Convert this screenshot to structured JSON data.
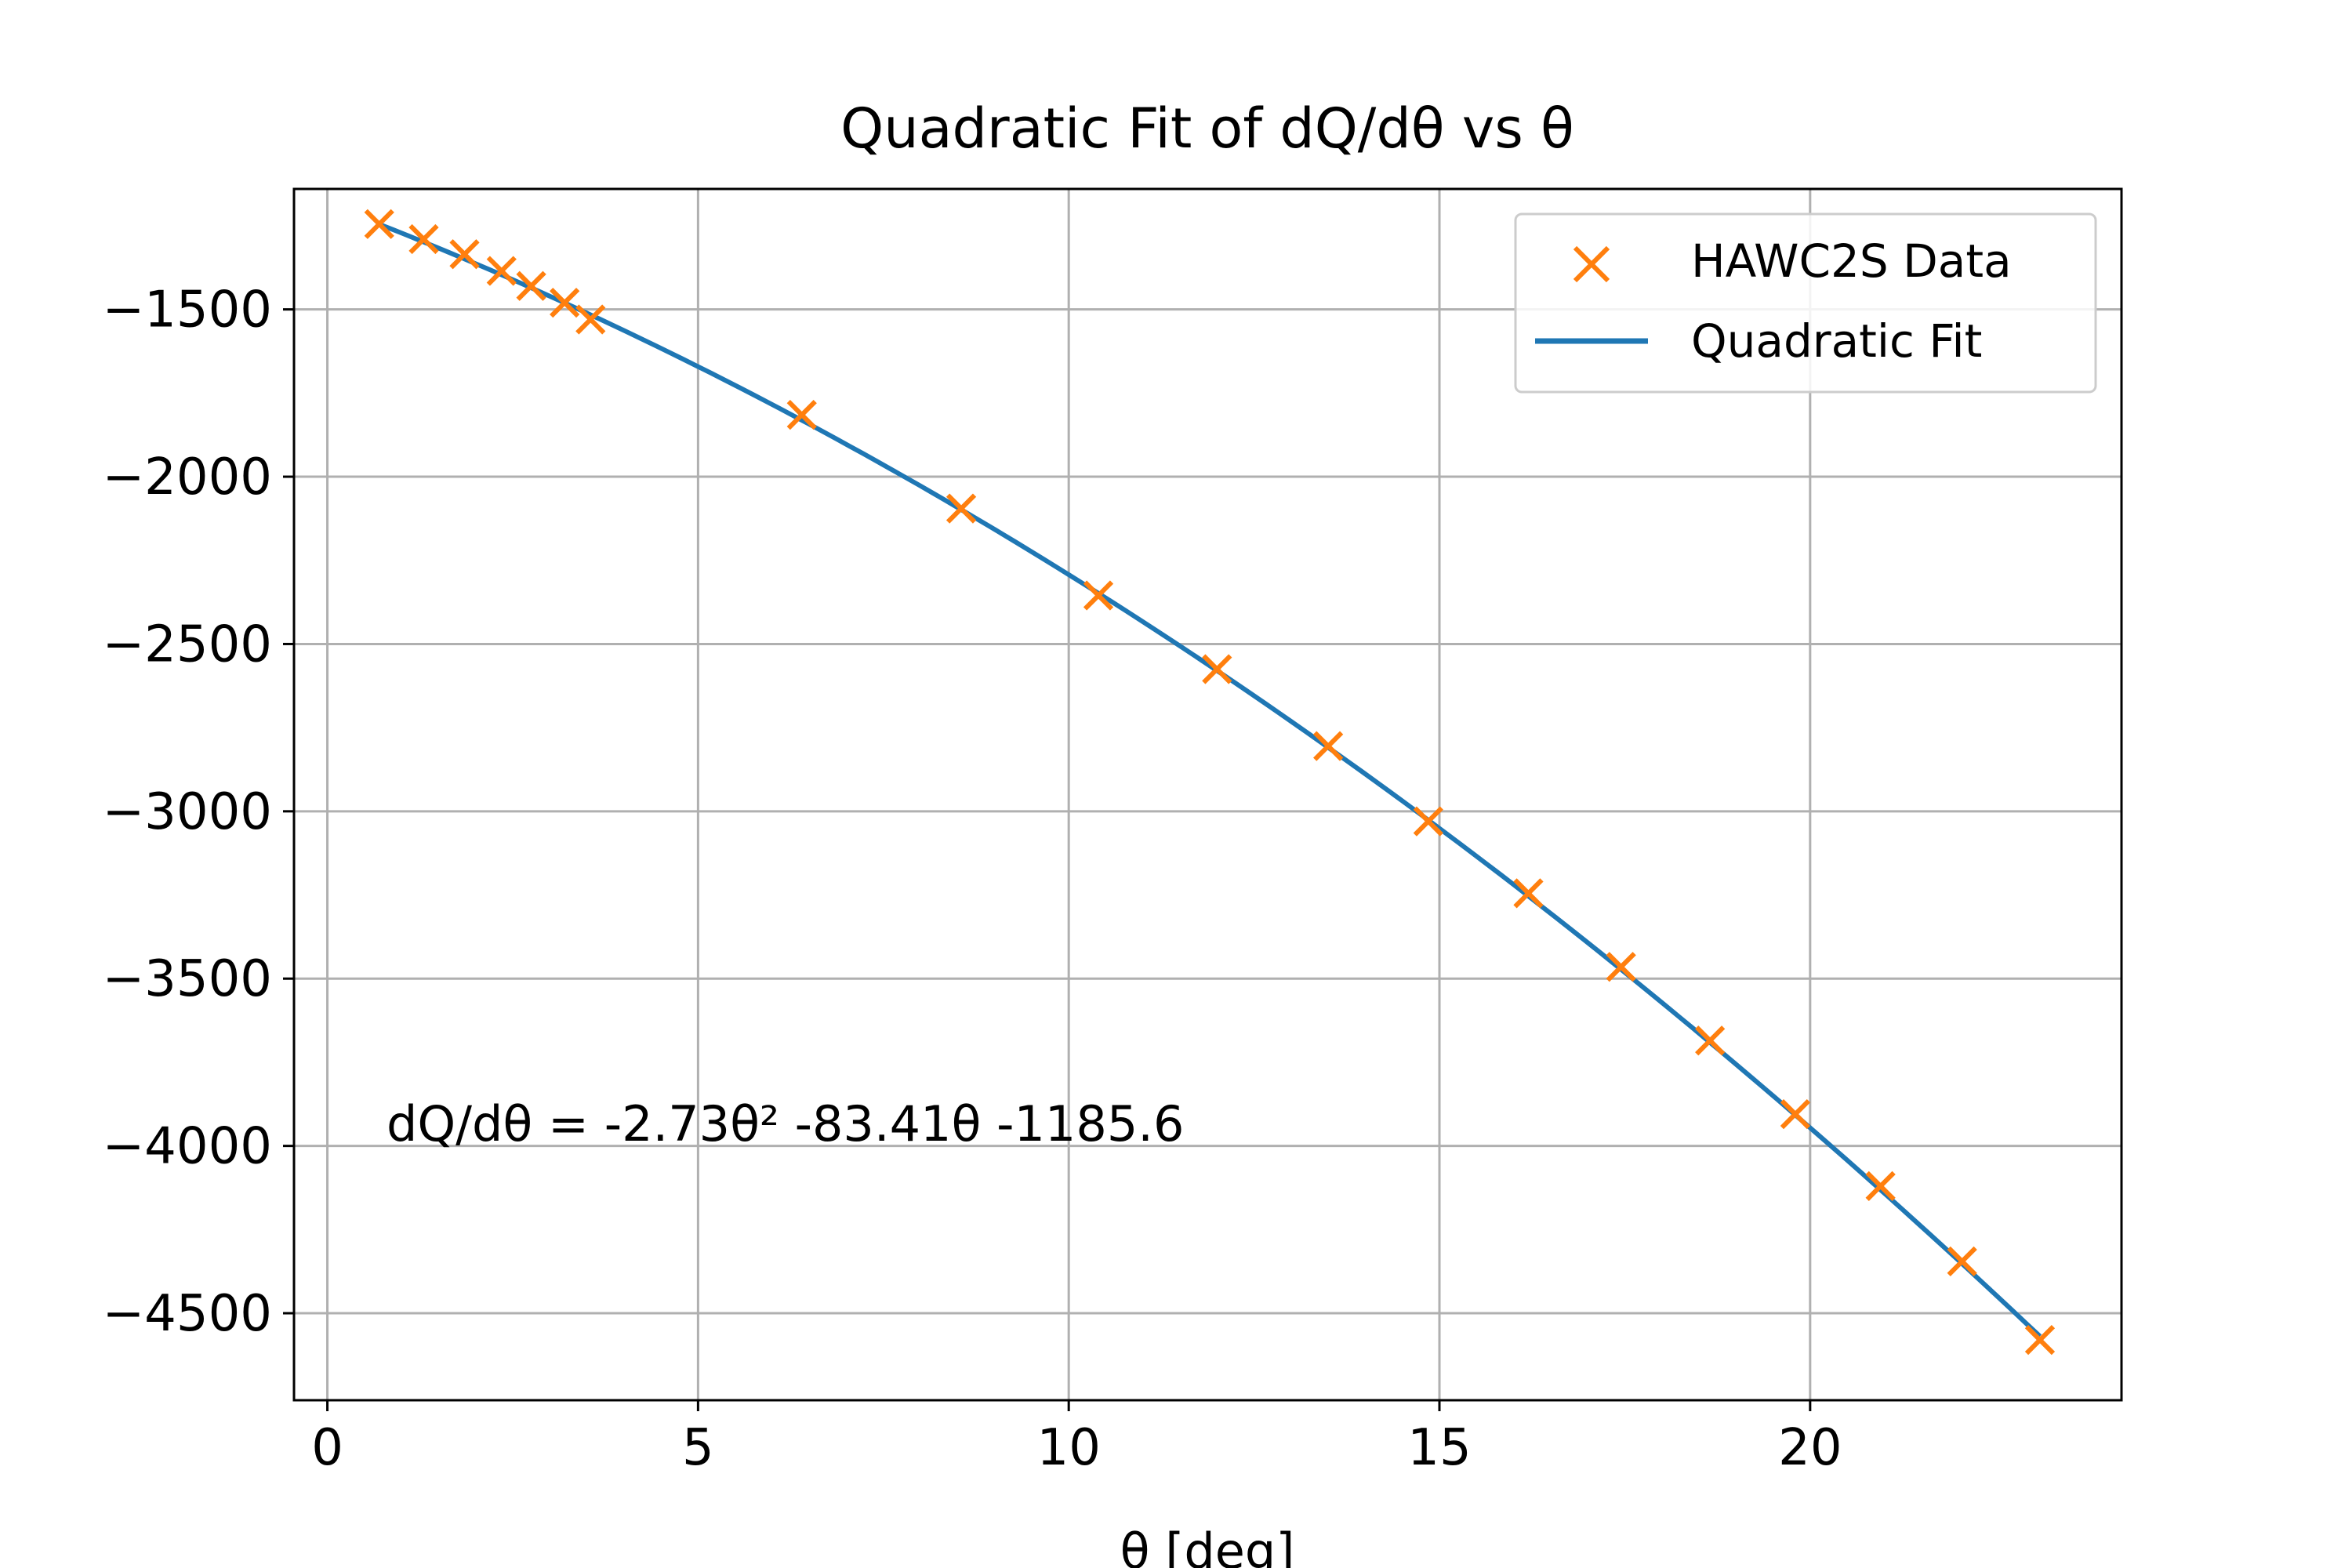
{
  "chart_data": {
    "type": "scatter",
    "title": "Quadratic Fit of dQ/dθ vs θ",
    "xlabel": "θ [deg]",
    "ylabel": "",
    "xlim": [
      -0.45,
      24.2
    ],
    "ylim": [
      -4760,
      -1140
    ],
    "xticks": [
      0,
      5,
      10,
      15,
      20
    ],
    "yticks": [
      -1500,
      -2000,
      -2500,
      -3000,
      -3500,
      -4000,
      -4500
    ],
    "xtick_labels": [
      "0",
      "5",
      "10",
      "15",
      "20"
    ],
    "ytick_labels": [
      "−1500",
      "−2000",
      "−2500",
      "−3000",
      "−3500",
      "−4000",
      "−4500"
    ],
    "grid": true,
    "legend_position": "top-right",
    "series": [
      {
        "name": "HAWC2S Data",
        "type": "scatter",
        "marker": "x",
        "color": "#ff7f0e",
        "x": [
          0.7,
          1.3,
          1.85,
          2.35,
          2.75,
          3.2,
          3.55,
          6.4,
          8.55,
          10.4,
          12.0,
          13.5,
          14.85,
          16.2,
          17.45,
          18.65,
          19.8,
          20.95,
          22.05,
          23.1
        ],
        "y": [
          -1245,
          -1290,
          -1335,
          -1385,
          -1430,
          -1480,
          -1530,
          -1815,
          -2095,
          -2355,
          -2575,
          -2805,
          -3030,
          -3245,
          -3465,
          -3685,
          -3905,
          -4120,
          -4345,
          -4580
        ]
      },
      {
        "name": "Quadratic Fit",
        "type": "line",
        "color": "#1f77b4",
        "coefficients": [
          -2.73,
          -83.41,
          -1185.6
        ],
        "x_range": [
          0.7,
          23.1
        ]
      }
    ],
    "annotation": "dQ/dθ = -2.73θ² -83.41θ -1185.6"
  }
}
